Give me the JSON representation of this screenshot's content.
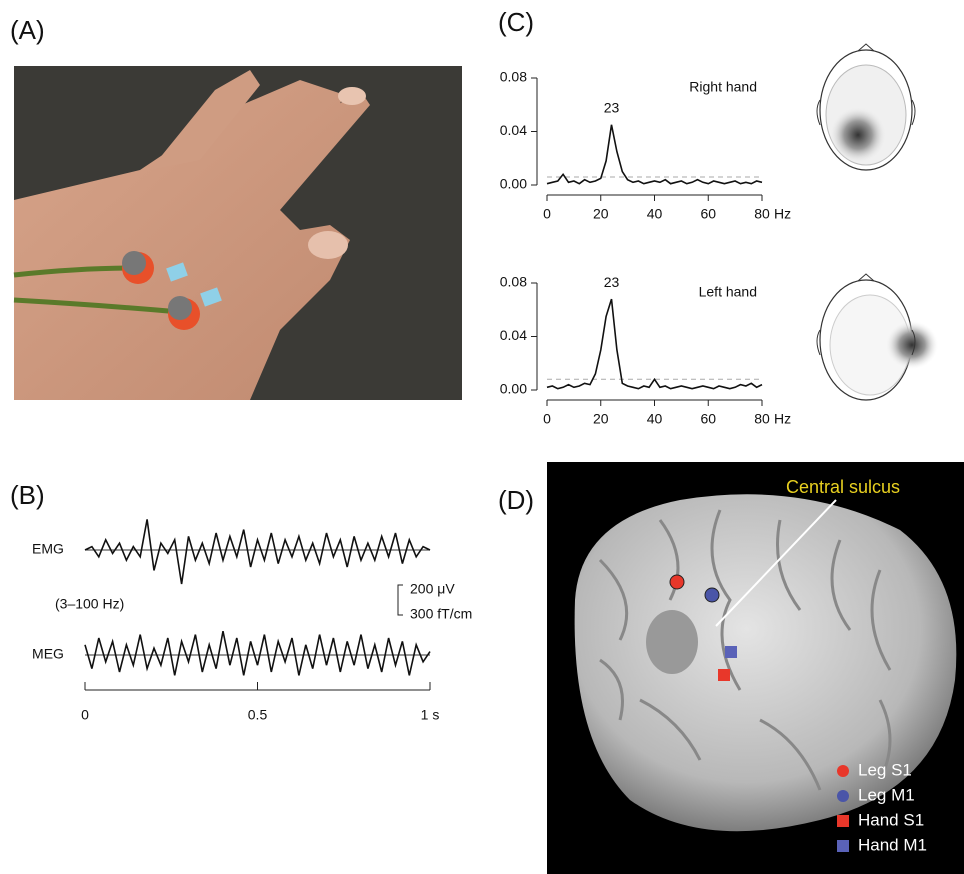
{
  "labels": {
    "a": "(A)",
    "b": "(B)",
    "c": "(C)",
    "d": "(D)"
  },
  "chart_data": [
    {
      "type": "line",
      "x": [
        0,
        0.02,
        0.04,
        0.06,
        0.08,
        0.1,
        0.12,
        0.14,
        0.16,
        0.18,
        0.2,
        0.22,
        0.24,
        0.26,
        0.28,
        0.3,
        0.32,
        0.34,
        0.36,
        0.38,
        0.4,
        0.42,
        0.44,
        0.46,
        0.48,
        0.5,
        0.52,
        0.54,
        0.56,
        0.58,
        0.6,
        0.62,
        0.64,
        0.66,
        0.68,
        0.7,
        0.72,
        0.74,
        0.76,
        0.78,
        0.8,
        0.82,
        0.84,
        0.86,
        0.88,
        0.9,
        0.92,
        0.94,
        0.96,
        0.98,
        1
      ],
      "xlim": [
        0,
        1
      ],
      "xticks": [
        0,
        0.5,
        {
          "value": 1,
          "label": "1 s"
        }
      ],
      "filter_label": "(3–100 Hz)",
      "scale_labels": [
        "200 μV",
        "300 fT/cm"
      ],
      "series": [
        {
          "name": "EMG",
          "color": "#111111",
          "values": [
            0,
            0.1,
            -0.2,
            0.3,
            -0.1,
            0.2,
            -0.3,
            0.1,
            -0.2,
            0.9,
            -0.6,
            0.2,
            -0.1,
            0.3,
            -1.0,
            0.4,
            -0.3,
            0.2,
            -0.4,
            0.5,
            -0.3,
            0.4,
            -0.2,
            0.6,
            -0.5,
            0.3,
            -0.3,
            0.5,
            -0.4,
            0.3,
            -0.2,
            0.4,
            -0.3,
            0.2,
            -0.4,
            0.5,
            -0.2,
            0.3,
            -0.5,
            0.4,
            -0.3,
            0.2,
            -0.3,
            0.4,
            -0.2,
            0.5,
            -0.4,
            0.3,
            -0.2,
            0.1,
            0
          ]
        },
        {
          "name": "MEG",
          "color": "#111111",
          "values": [
            0.3,
            -0.4,
            0.5,
            -0.2,
            0.4,
            -0.5,
            0.3,
            -0.3,
            0.6,
            -0.4,
            0.2,
            -0.3,
            0.5,
            -0.6,
            0.4,
            -0.2,
            0.6,
            -0.5,
            0.3,
            -0.4,
            0.7,
            -0.3,
            0.5,
            -0.6,
            0.4,
            -0.3,
            0.6,
            -0.5,
            0.4,
            -0.2,
            0.5,
            -0.6,
            0.3,
            -0.4,
            0.6,
            -0.3,
            0.5,
            -0.5,
            0.4,
            -0.3,
            0.6,
            -0.4,
            0.3,
            -0.5,
            0.5,
            -0.3,
            0.4,
            -0.6,
            0.3,
            -0.2,
            0.1
          ]
        }
      ]
    },
    {
      "type": "line",
      "subtitle": "Right hand",
      "peak_label": "23",
      "xlabel": "Hz",
      "x": [
        0,
        2,
        4,
        6,
        8,
        10,
        12,
        14,
        16,
        18,
        20,
        22,
        24,
        26,
        28,
        30,
        32,
        34,
        36,
        38,
        40,
        42,
        44,
        46,
        48,
        50,
        52,
        54,
        56,
        58,
        60,
        62,
        64,
        66,
        68,
        70,
        72,
        74,
        76,
        78,
        80
      ],
      "xlim": [
        0,
        80
      ],
      "xticks": [
        0,
        20,
        40,
        60,
        80
      ],
      "ylim": [
        0,
        0.08
      ],
      "yticks": [
        {
          "value": 0,
          "label": "0.00"
        },
        0.04,
        0.08
      ],
      "reference_line": 0.006,
      "series": [
        {
          "color": "#111111",
          "values": [
            0.001,
            0.002,
            0.003,
            0.008,
            0.002,
            0.003,
            0.001,
            0.004,
            0.002,
            0.003,
            0.005,
            0.018,
            0.045,
            0.025,
            0.01,
            0.004,
            0.002,
            0.003,
            0.001,
            0.002,
            0.003,
            0.002,
            0.004,
            0.001,
            0.002,
            0.003,
            0.001,
            0.002,
            0.004,
            0.002,
            0.001,
            0.003,
            0.002,
            0.001,
            0.002,
            0.003,
            0.001,
            0.002,
            0.001,
            0.003,
            0.002
          ]
        }
      ]
    },
    {
      "type": "line",
      "subtitle": "Left hand",
      "peak_label": "23",
      "xlabel": "Hz",
      "x": [
        0,
        2,
        4,
        6,
        8,
        10,
        12,
        14,
        16,
        18,
        20,
        22,
        24,
        26,
        28,
        30,
        32,
        34,
        36,
        38,
        40,
        42,
        44,
        46,
        48,
        50,
        52,
        54,
        56,
        58,
        60,
        62,
        64,
        66,
        68,
        70,
        72,
        74,
        76,
        78,
        80
      ],
      "xlim": [
        0,
        80
      ],
      "xticks": [
        0,
        20,
        40,
        60,
        80
      ],
      "ylim": [
        0,
        0.08
      ],
      "yticks": [
        {
          "value": 0,
          "label": "0.00"
        },
        0.04,
        0.08
      ],
      "reference_line": 0.008,
      "series": [
        {
          "color": "#111111",
          "values": [
            0.002,
            0.003,
            0.001,
            0.002,
            0.004,
            0.002,
            0.003,
            0.005,
            0.004,
            0.012,
            0.03,
            0.055,
            0.068,
            0.03,
            0.005,
            0.003,
            0.002,
            0.001,
            0.003,
            0.002,
            0.008,
            0.002,
            0.003,
            0.001,
            0.002,
            0.003,
            0.002,
            0.001,
            0.002,
            0.003,
            0.002,
            0.001,
            0.003,
            0.002,
            0.001,
            0.002,
            0.004,
            0.003,
            0.005,
            0.002,
            0.004
          ]
        }
      ]
    }
  ],
  "panel_d": {
    "annotation": "Central sulcus",
    "legend": [
      {
        "label": "Leg S1",
        "color": "#e8372a",
        "shape": "circle"
      },
      {
        "label": "Leg M1",
        "color": "#4a55a8",
        "shape": "circle"
      },
      {
        "label": "Hand S1",
        "color": "#e8372a",
        "shape": "square"
      },
      {
        "label": "Hand M1",
        "color": "#5a62b8",
        "shape": "square"
      }
    ]
  }
}
